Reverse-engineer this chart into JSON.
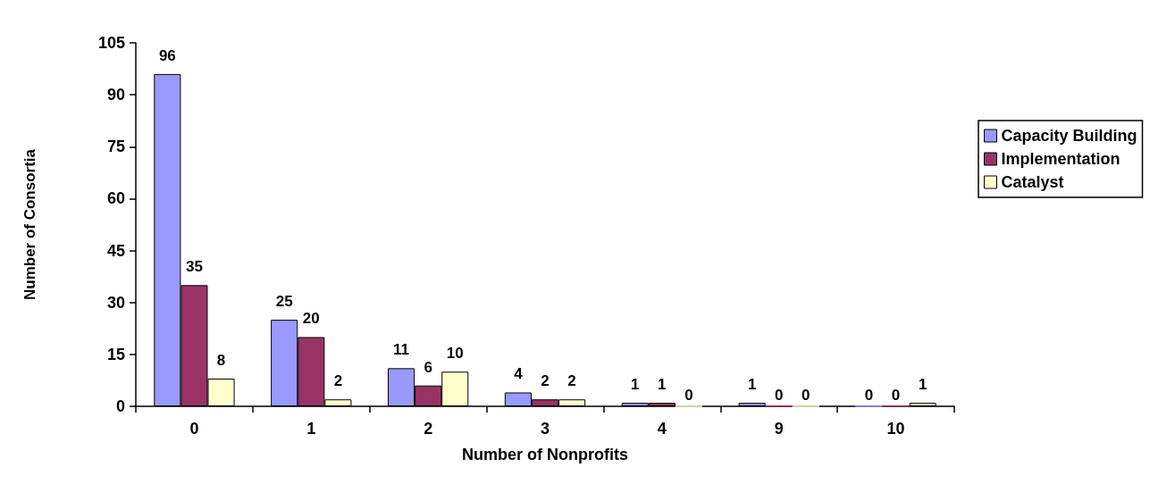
{
  "chart_data": {
    "type": "bar",
    "xlabel": "Number of Nonprofits",
    "ylabel": "Number of Consortia",
    "categories": [
      "0",
      "1",
      "2",
      "3",
      "4",
      "9",
      "10"
    ],
    "series": [
      {
        "name": "Capacity Building",
        "color": "#9999ff",
        "values": [
          96,
          25,
          11,
          4,
          1,
          1,
          0
        ]
      },
      {
        "name": "Implementation",
        "color": "#993366",
        "values": [
          35,
          20,
          6,
          2,
          1,
          0,
          0
        ]
      },
      {
        "name": "Catalyst",
        "color": "#ffffcc",
        "values": [
          8,
          2,
          10,
          2,
          0,
          0,
          1
        ]
      }
    ],
    "ylim": [
      0,
      105
    ],
    "yticks": [
      0,
      15,
      30,
      45,
      60,
      75,
      90,
      105
    ],
    "grid": false,
    "legend": "right",
    "data_labels": true
  }
}
